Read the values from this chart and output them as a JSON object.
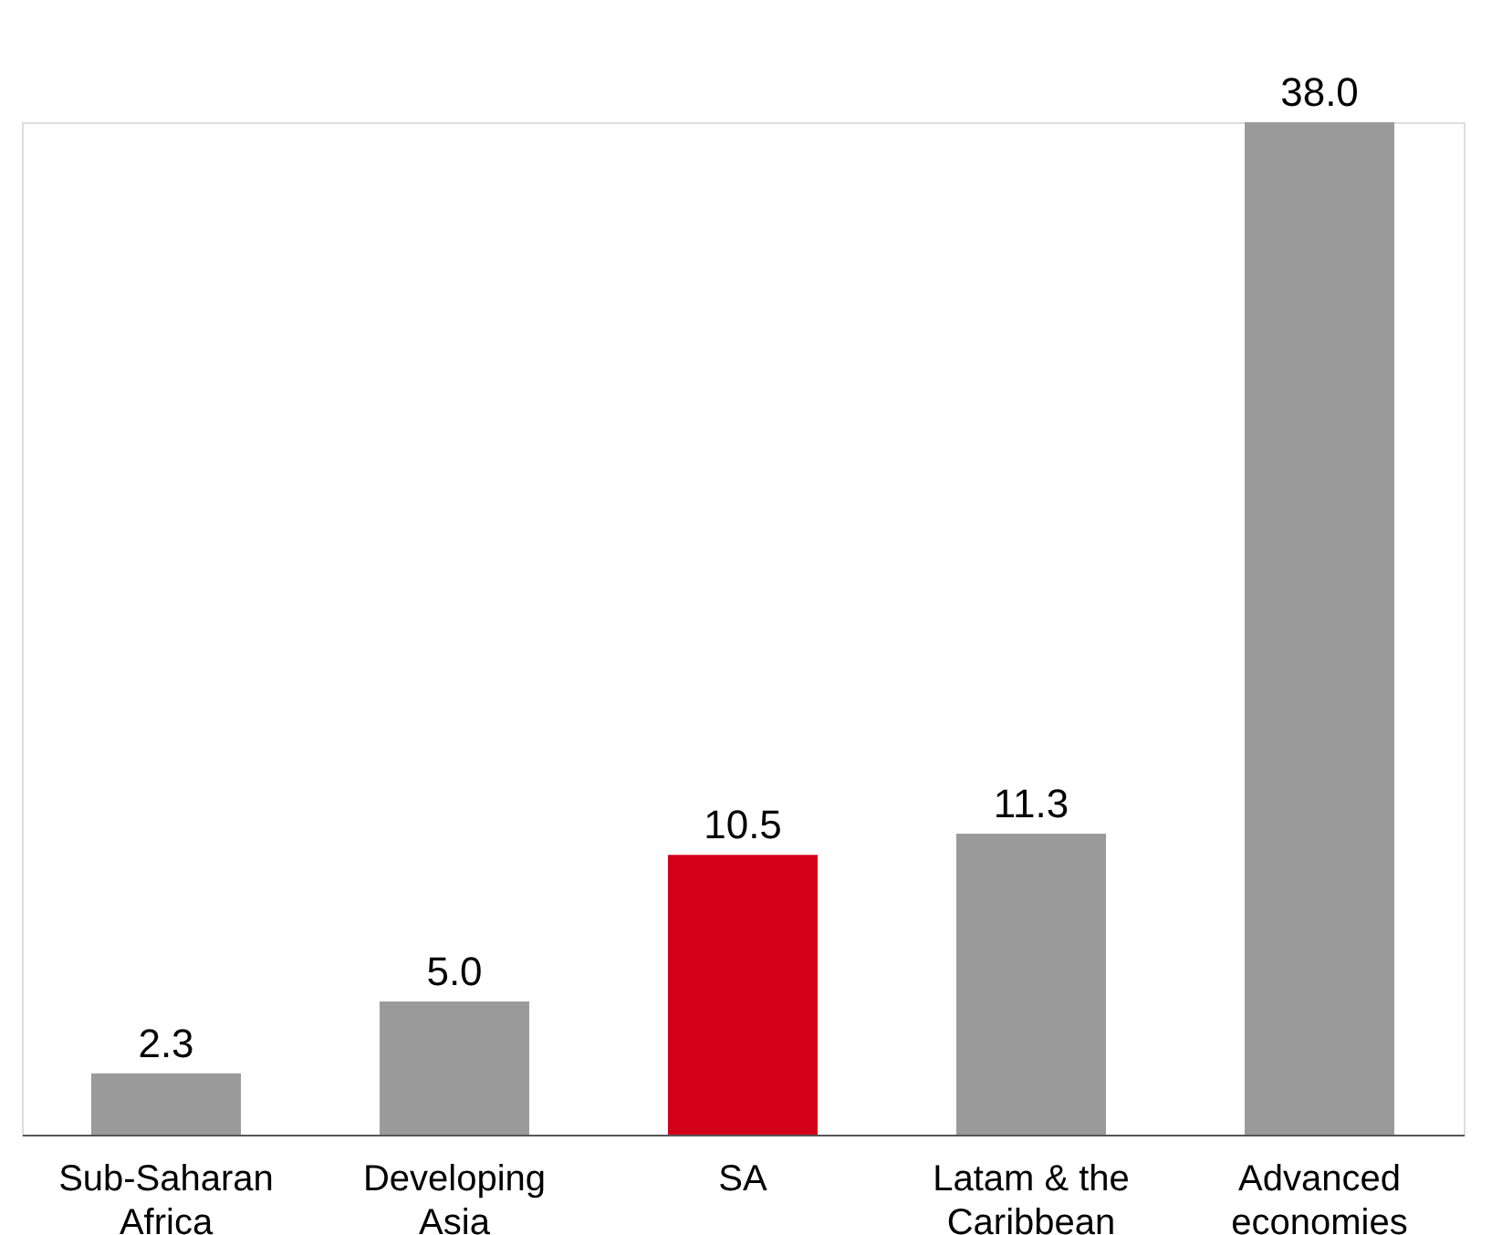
{
  "chart_data": {
    "type": "bar",
    "categories": [
      "Sub-Saharan Africa",
      "Developing Asia",
      "SA",
      "Latam & the Caribbean",
      "Advanced economies"
    ],
    "values": [
      2.3,
      5.0,
      10.5,
      11.3,
      38.0
    ],
    "value_labels": [
      "2.3",
      "5.0",
      "10.5",
      "11.3",
      "38.0"
    ],
    "colors": [
      "#9a9a9a",
      "#9a9a9a",
      "#d4001a",
      "#9a9a9a",
      "#9a9a9a"
    ],
    "grid": false
  }
}
